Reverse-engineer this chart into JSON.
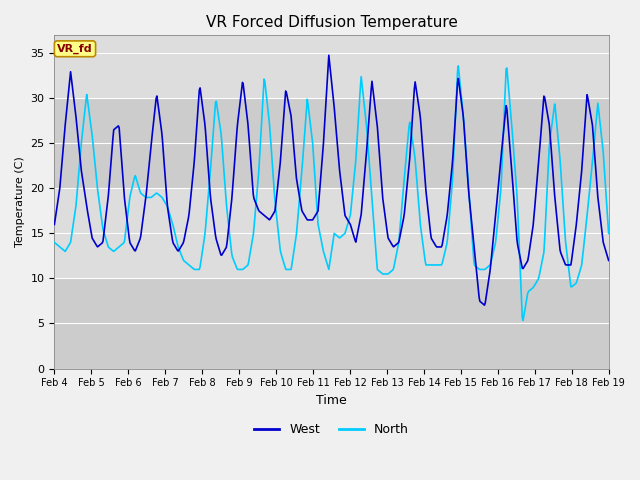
{
  "title": "VR Forced Diffusion Temperature",
  "xlabel": "Time",
  "ylabel": "Temperature (C)",
  "ylim": [
    0,
    37
  ],
  "yticks": [
    0,
    5,
    10,
    15,
    20,
    25,
    30,
    35
  ],
  "x_labels": [
    "Feb 4",
    "Feb 5",
    "Feb 6",
    "Feb 7",
    "Feb 8",
    "Feb 9",
    "Feb 10",
    "Feb 11",
    "Feb 12",
    "Feb 13",
    "Feb 14",
    "Feb 15",
    "Feb 16",
    "Feb 17",
    "Feb 18",
    "Feb 19"
  ],
  "west_color": "#0000CD",
  "north_color": "#00CCFF",
  "label_box_color": "#FFFF88",
  "label_box_edge": "#BB8800",
  "label_text_color": "#880000",
  "label_text": "VR_fd",
  "legend_west": "West",
  "legend_north": "North",
  "line_width": 1.2,
  "band_colors": [
    "#CCCCCC",
    "#DDDDDD",
    "#CCCCCC",
    "#DDDDDD"
  ],
  "grid_color": "#FFFFFF",
  "fig_bg": "#F0F0F0",
  "west_data": [
    16.0,
    20.0,
    27.0,
    33.0,
    28.0,
    22.0,
    18.0,
    14.5,
    13.5,
    14.0,
    19.0,
    26.5,
    27.0,
    19.0,
    14.0,
    13.0,
    14.5,
    19.0,
    25.0,
    30.5,
    26.0,
    18.0,
    14.0,
    13.0,
    14.0,
    17.0,
    23.0,
    31.5,
    27.0,
    19.0,
    14.5,
    12.5,
    13.5,
    19.0,
    27.0,
    32.0,
    27.0,
    19.0,
    17.5,
    17.0,
    16.5,
    17.5,
    23.0,
    31.0,
    28.0,
    21.0,
    17.5,
    16.5,
    16.5,
    17.5,
    25.0,
    34.8,
    29.0,
    22.0,
    17.0,
    16.0,
    14.0,
    17.0,
    24.0,
    32.0,
    27.0,
    19.0,
    14.5,
    13.5,
    14.0,
    17.0,
    23.0,
    32.0,
    28.0,
    20.0,
    14.5,
    13.5,
    13.5,
    17.0,
    23.0,
    32.5,
    28.0,
    19.5,
    13.5,
    7.5,
    7.0,
    11.0,
    17.0,
    23.5,
    29.5,
    22.0,
    14.0,
    11.0,
    12.0,
    16.0,
    23.0,
    30.5,
    27.0,
    19.0,
    13.0,
    11.5,
    11.5,
    16.0,
    22.0,
    30.5,
    27.0,
    19.0,
    14.0,
    12.0
  ],
  "north_data": [
    14.0,
    13.5,
    13.0,
    14.0,
    18.0,
    25.0,
    30.5,
    26.0,
    20.0,
    15.5,
    13.5,
    13.0,
    13.5,
    14.0,
    19.0,
    21.5,
    19.5,
    19.0,
    19.0,
    19.5,
    19.0,
    18.0,
    16.0,
    13.5,
    12.0,
    11.5,
    11.0,
    11.0,
    15.0,
    22.0,
    30.0,
    26.0,
    18.0,
    12.5,
    11.0,
    11.0,
    11.5,
    15.0,
    22.0,
    32.5,
    27.0,
    18.5,
    13.0,
    11.0,
    11.0,
    15.0,
    22.0,
    30.0,
    25.0,
    16.0,
    13.0,
    11.0,
    15.0,
    14.5,
    15.0,
    17.0,
    23.0,
    32.5,
    27.0,
    19.0,
    11.0,
    10.5,
    10.5,
    11.0,
    14.0,
    21.0,
    27.5,
    23.5,
    16.0,
    11.5,
    11.5,
    11.5,
    11.5,
    14.0,
    21.0,
    34.0,
    28.0,
    20.0,
    11.5,
    11.0,
    11.0,
    11.5,
    14.0,
    20.0,
    34.0,
    27.0,
    19.0,
    5.0,
    8.5,
    9.0,
    10.0,
    13.0,
    25.0,
    29.5,
    23.0,
    14.0,
    9.0,
    9.5,
    11.5,
    17.0,
    23.0,
    29.5,
    24.0,
    15.0
  ]
}
